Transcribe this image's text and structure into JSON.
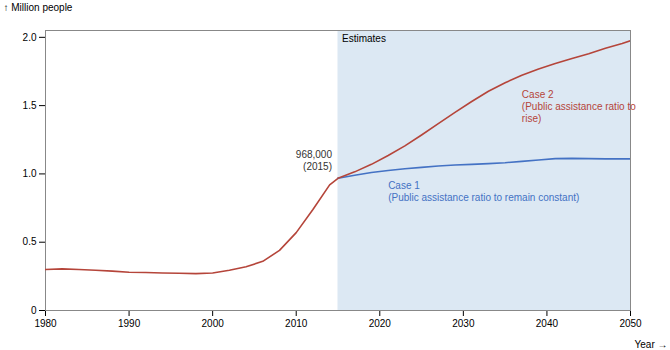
{
  "chart_data": {
    "type": "line",
    "xlabel": "Year",
    "ylabel": "Million people",
    "xlim": [
      1980,
      2050
    ],
    "xticks": [
      1980,
      1990,
      2000,
      2010,
      2020,
      2030,
      2040,
      2050
    ],
    "ylim": [
      0,
      2.05
    ],
    "yticks": [
      0,
      0.5,
      {
        "value": 1.0,
        "label": "1.0"
      },
      1.5,
      {
        "value": 2.0,
        "label": "2.0"
      }
    ],
    "shaded_region": {
      "x": [
        2015,
        2050
      ],
      "color": "#dce8f3",
      "label": "Estimates"
    },
    "series": [
      {
        "color": "#b5453a",
        "x": [
          1980,
          1982,
          1984,
          1986,
          1988,
          1990,
          1992,
          1994,
          1996,
          1998,
          2000,
          2002,
          2004,
          2006,
          2008,
          2010,
          2012,
          2014,
          2015
        ],
        "values": [
          0.3,
          0.305,
          0.3,
          0.295,
          0.288,
          0.28,
          0.278,
          0.275,
          0.273,
          0.27,
          0.275,
          0.295,
          0.32,
          0.36,
          0.44,
          0.57,
          0.74,
          0.92,
          0.968
        ],
        "annotation": {
          "text": "968,000\n(2015)",
          "color": "#333333"
        }
      },
      {
        "color": "#4472c4",
        "x": [
          2015,
          2017,
          2019,
          2021,
          2023,
          2025,
          2027,
          2029,
          2031,
          2033,
          2035,
          2037,
          2039,
          2041,
          2043,
          2045,
          2047,
          2049,
          2050
        ],
        "values": [
          0.968,
          0.99,
          1.01,
          1.025,
          1.038,
          1.048,
          1.058,
          1.065,
          1.07,
          1.075,
          1.082,
          1.092,
          1.102,
          1.112,
          1.114,
          1.112,
          1.11,
          1.11,
          1.11
        ],
        "annotation": {
          "text": "Case 1\n(Public assistance ratio to remain constant)",
          "color": "#4472c4"
        }
      },
      {
        "color": "#b5453a",
        "x": [
          2015,
          2017,
          2019,
          2021,
          2023,
          2025,
          2027,
          2029,
          2031,
          2033,
          2035,
          2037,
          2039,
          2041,
          2043,
          2045,
          2047,
          2049,
          2050
        ],
        "values": [
          0.968,
          1.015,
          1.07,
          1.135,
          1.205,
          1.285,
          1.368,
          1.45,
          1.53,
          1.605,
          1.668,
          1.722,
          1.768,
          1.808,
          1.845,
          1.88,
          1.92,
          1.955,
          1.975
        ],
        "annotation": {
          "text": "Case 2\n(Public assistance ratio to\nrise)",
          "color": "#b5453a"
        }
      }
    ]
  }
}
